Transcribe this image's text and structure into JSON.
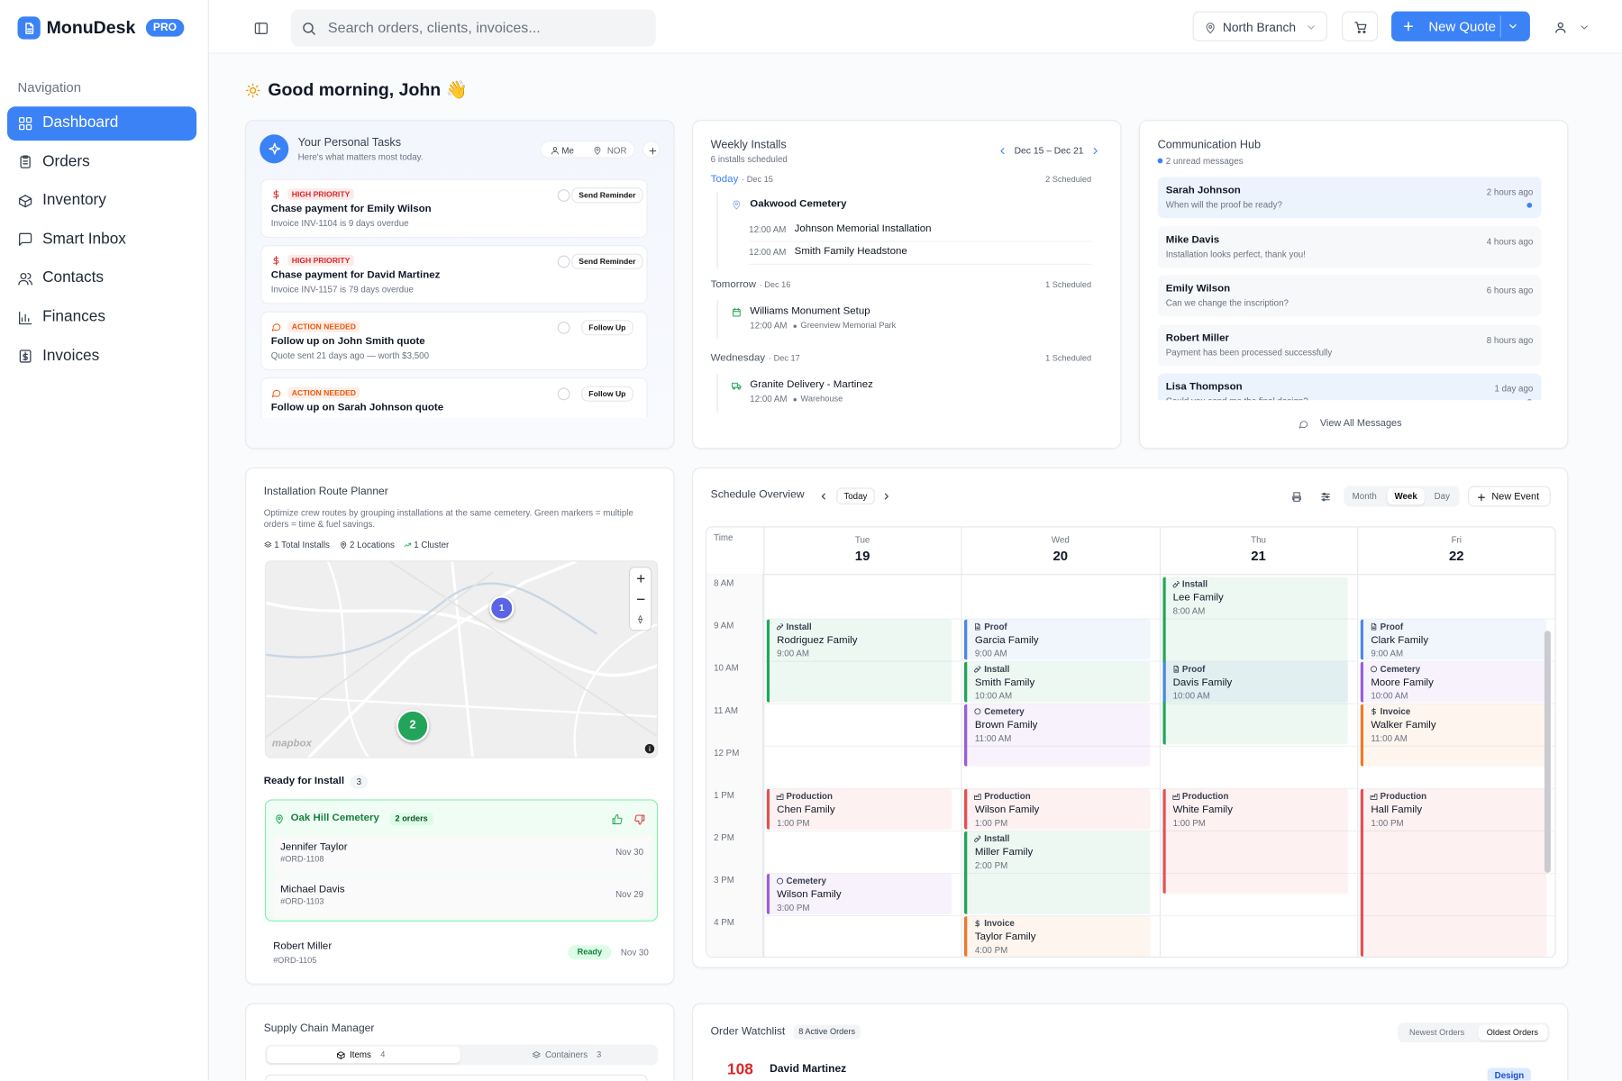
{
  "brand": {
    "name": "MonuDesk",
    "badge": "PRO"
  },
  "header": {
    "search": "Search orders, clients, invoices...",
    "branch": "North Branch",
    "primary_button": "New Quote"
  },
  "sidebar": {
    "heading": "Navigation",
    "items": [
      {
        "label": "Dashboard",
        "icon": "grid"
      },
      {
        "label": "Orders",
        "icon": "clipboard"
      },
      {
        "label": "Inventory",
        "icon": "box"
      },
      {
        "label": "Smart Inbox",
        "icon": "message"
      },
      {
        "label": "Contacts",
        "icon": "users"
      },
      {
        "label": "Finances",
        "icon": "chart"
      },
      {
        "label": "Invoices",
        "icon": "receipt"
      }
    ],
    "active": 0
  },
  "greeting": "Good morning, John 👋",
  "tasks": {
    "title": "Your Personal Tasks",
    "subtitle": "Here's what matters most today.",
    "filters": [
      "Me",
      "NOR"
    ],
    "items": [
      {
        "tag": "HIGH PRIORITY",
        "icon": "dollar",
        "color": "#dc2626",
        "title": "Chase payment for Emily Wilson",
        "detail": "Invoice INV-1104 is 9 days overdue",
        "action": "Send Reminder"
      },
      {
        "tag": "HIGH PRIORITY",
        "icon": "dollar",
        "color": "#dc2626",
        "title": "Chase payment for David Martinez",
        "detail": "Invoice INV-1157 is 79 days overdue",
        "action": "Send Reminder"
      },
      {
        "tag": "ACTION NEEDED",
        "icon": "bubble",
        "color": "#ea580c",
        "title": "Follow up on John Smith quote",
        "detail": "Quote sent 21 days ago — worth $3,500",
        "action": "Follow Up"
      },
      {
        "tag": "ACTION NEEDED",
        "icon": "bubble",
        "color": "#ea580c",
        "title": "Follow up on Sarah Johnson quote",
        "action": "Follow Up"
      }
    ]
  },
  "weekly_installs": {
    "title": "Weekly Installs",
    "subtitle": "6 installs scheduled",
    "range": "Dec 15 – Dec 21",
    "days": [
      {
        "label": "Today",
        "date": "· Dec 15",
        "count": "2 Scheduled",
        "location": "Oakwood Cemetery",
        "items": [
          {
            "time": "12:00 AM",
            "title": "Johnson Memorial Installation"
          },
          {
            "time": "12:00 AM",
            "title": "Smith Family Headstone"
          }
        ]
      },
      {
        "label": "Tomorrow",
        "date": "· Dec 16",
        "count": "1 Scheduled",
        "icon": "calendar",
        "items": [
          {
            "time": "12:00 AM",
            "title": "Williams Monument Setup",
            "place": "Greenview Memorial Park"
          }
        ]
      },
      {
        "label": "Wednesday",
        "date": "· Dec 17",
        "count": "1 Scheduled",
        "icon": "truck",
        "items": [
          {
            "time": "12:00 AM",
            "title": "Granite Delivery - Martinez",
            "place": "Warehouse"
          }
        ]
      }
    ]
  },
  "communication_hub": {
    "title": "Communication Hub",
    "subtitle": "2 unread messages",
    "messages": [
      {
        "name": "Sarah Johnson",
        "text": "When will the proof be ready?",
        "time": "2 hours ago",
        "unread": true
      },
      {
        "name": "Mike Davis",
        "text": "Installation looks perfect, thank you!",
        "time": "4 hours ago",
        "unread": false
      },
      {
        "name": "Emily Wilson",
        "text": "Can we change the inscription?",
        "time": "6 hours ago",
        "unread": false
      },
      {
        "name": "Robert Miller",
        "text": "Payment has been processed successfully",
        "time": "8 hours ago",
        "unread": false
      },
      {
        "name": "Lisa Thompson",
        "text": "Could you send me the final design?",
        "time": "1 day ago",
        "unread": true
      }
    ],
    "footer": "View All Messages"
  },
  "route_planner": {
    "title": "Installation Route Planner",
    "description": "Optimize crew routes by grouping installations at the same cemetery. Green markers = multiple orders = time & fuel savings.",
    "stats": [
      {
        "label": "1 Total Installs",
        "icon": "layers"
      },
      {
        "label": "2 Locations",
        "icon": "pin"
      },
      {
        "label": "1 Cluster",
        "icon": "route"
      }
    ],
    "map": {
      "markers": [
        {
          "label": "1",
          "color": "#5b63e6"
        },
        {
          "label": "2",
          "color": "#22a55b"
        }
      ],
      "attribution": "mapbox"
    },
    "ready_title": "Ready for Install",
    "ready_count": "3",
    "group": {
      "name": "Oak Hill Cemetery",
      "count": "2 orders",
      "orders": [
        {
          "name": "Jennifer Taylor",
          "id": "#ORD-1108",
          "date": "Nov 30"
        },
        {
          "name": "Michael Davis",
          "id": "#ORD-1103",
          "date": "Nov 29"
        }
      ]
    },
    "others": [
      {
        "name": "Robert Miller",
        "id": "#ORD-1105",
        "status": "Ready",
        "date": "Nov 30"
      }
    ]
  },
  "schedule": {
    "title": "Schedule Overview",
    "today": "Today",
    "views": [
      "Month",
      "Week",
      "Day"
    ],
    "active_view": 1,
    "new_event": "New Event",
    "time_heading": "Time",
    "days": [
      {
        "weekday": "Tue",
        "date": "19"
      },
      {
        "weekday": "Wed",
        "date": "20"
      },
      {
        "weekday": "Thu",
        "date": "21"
      },
      {
        "weekday": "Fri",
        "date": "22"
      }
    ],
    "hours": [
      "8 AM",
      "9 AM",
      "10 AM",
      "11 AM",
      "12 PM",
      "1 PM",
      "2 PM",
      "3 PM",
      "4 PM"
    ],
    "first_hour": 8,
    "type_styles": {
      "Install": {
        "color": "#22a55b",
        "icon": "wrench"
      },
      "Proof": {
        "color": "#4f86e8",
        "icon": "file"
      },
      "Cemetery": {
        "color": "#9a5fd6",
        "icon": "ring"
      },
      "Production": {
        "color": "#e05252",
        "icon": "factory"
      },
      "Invoice": {
        "color": "#ec7a2c",
        "icon": "dollar"
      }
    },
    "events": [
      {
        "day": 0,
        "start": 9,
        "hours": 2,
        "type": "Install",
        "name": "Rodriguez Family",
        "time": "9:00 AM"
      },
      {
        "day": 0,
        "start": 13,
        "hours": 1,
        "type": "Production",
        "name": "Chen Family",
        "time": "1:00 PM"
      },
      {
        "day": 0,
        "start": 15,
        "hours": 1,
        "type": "Cemetery",
        "name": "Wilson Family",
        "time": "3:00 PM"
      },
      {
        "day": 1,
        "start": 9,
        "hours": 1,
        "type": "Proof",
        "name": "Garcia Family",
        "time": "9:00 AM"
      },
      {
        "day": 1,
        "start": 10,
        "hours": 1,
        "type": "Install",
        "name": "Smith Family",
        "time": "10:00 AM"
      },
      {
        "day": 1,
        "start": 11,
        "hours": 1.5,
        "type": "Cemetery",
        "name": "Brown Family",
        "time": "11:00 AM"
      },
      {
        "day": 1,
        "start": 13,
        "hours": 1,
        "type": "Production",
        "name": "Wilson Family",
        "time": "1:00 PM"
      },
      {
        "day": 1,
        "start": 14,
        "hours": 2,
        "type": "Install",
        "name": "Miller Family",
        "time": "2:00 PM"
      },
      {
        "day": 1,
        "start": 16,
        "hours": 1,
        "type": "Invoice",
        "name": "Taylor Family",
        "time": "4:00 PM"
      },
      {
        "day": 2,
        "start": 8,
        "hours": 4,
        "type": "Install",
        "name": "Lee Family",
        "time": "8:00 AM"
      },
      {
        "day": 2,
        "start": 10,
        "hours": 1,
        "type": "Proof",
        "name": "Davis Family",
        "time": "10:00 AM"
      },
      {
        "day": 2,
        "start": 13,
        "hours": 2.5,
        "type": "Production",
        "name": "White Family",
        "time": "1:00 PM"
      },
      {
        "day": 3,
        "start": 9,
        "hours": 1,
        "type": "Proof",
        "name": "Clark Family",
        "time": "9:00 AM"
      },
      {
        "day": 3,
        "start": 10,
        "hours": 1,
        "type": "Cemetery",
        "name": "Moore Family",
        "time": "10:00 AM"
      },
      {
        "day": 3,
        "start": 11,
        "hours": 1.5,
        "type": "Invoice",
        "name": "Walker Family",
        "time": "11:00 AM"
      },
      {
        "day": 3,
        "start": 13,
        "hours": 4,
        "type": "Production",
        "name": "Hall Family",
        "time": "1:00 PM"
      }
    ]
  },
  "supply_chain": {
    "title": "Supply Chain Manager",
    "tabs": [
      {
        "label": "Items",
        "count": "4"
      },
      {
        "label": "Containers",
        "count": "3"
      }
    ],
    "active_tab": 0
  },
  "order_watchlist": {
    "title": "Order Watchlist",
    "badge": "8 Active Orders",
    "sorts": [
      "Newest Orders",
      "Oldest Orders"
    ],
    "active_sort": 1,
    "orders": [
      {
        "number": "108",
        "name": "David Martinez",
        "stage": "Design"
      }
    ]
  }
}
